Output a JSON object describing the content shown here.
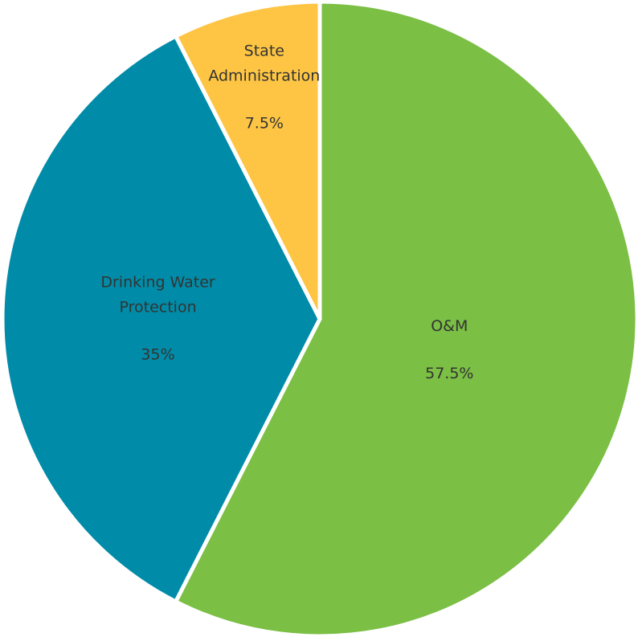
{
  "chart_data": {
    "type": "pie",
    "categories": [
      "O&M",
      "Drinking Water Protection",
      "State Administration"
    ],
    "values": [
      57.5,
      35,
      7.5
    ],
    "value_labels": [
      "57.5%",
      "35%",
      "7.5%"
    ],
    "colors": [
      "#7bbf45",
      "#008ca8",
      "#fdc543"
    ]
  }
}
